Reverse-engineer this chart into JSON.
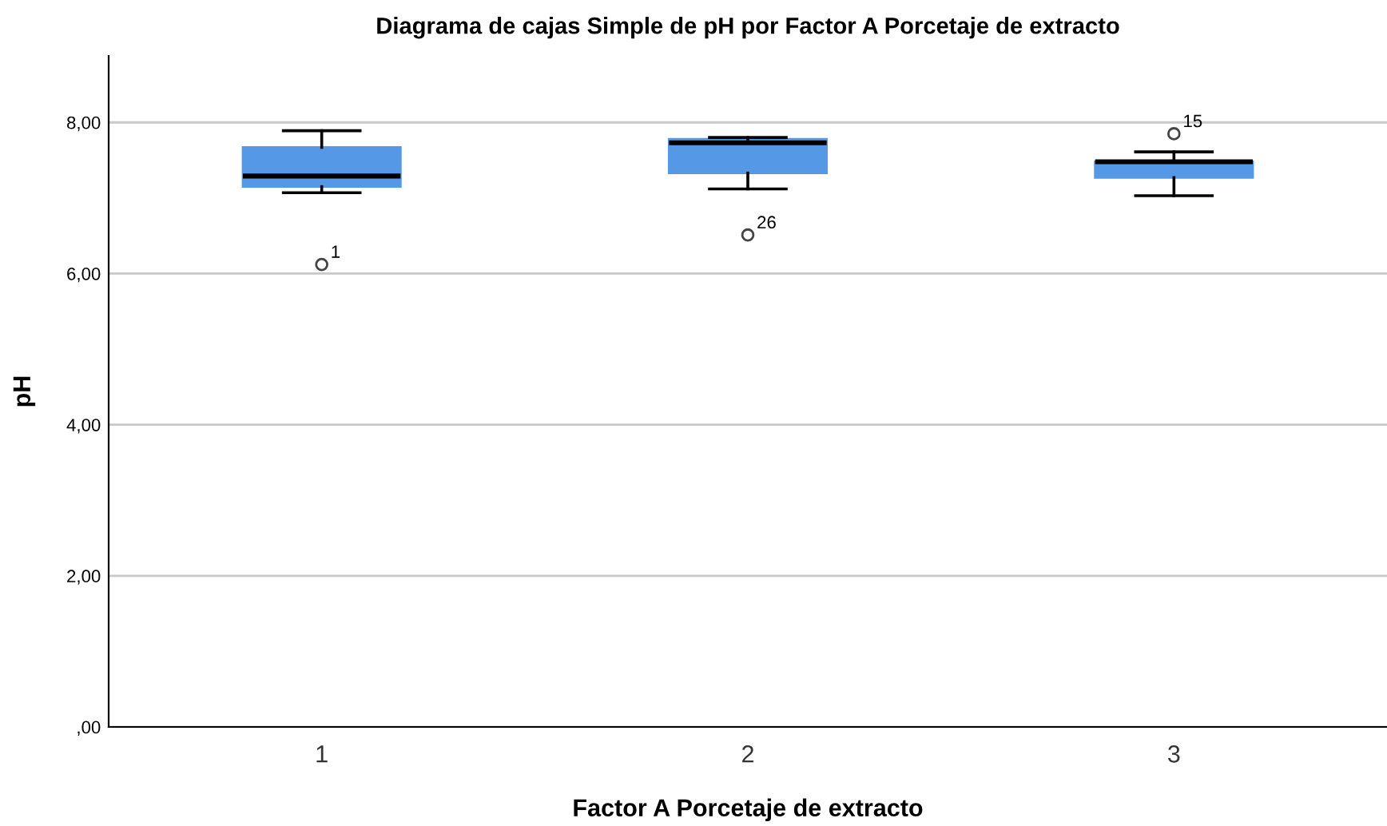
{
  "chart_data": {
    "type": "box",
    "title": "Diagrama de cajas Simple de pH por Factor A Porcetaje de extracto",
    "xlabel": "Factor A Porcetaje de extracto",
    "ylabel": "pH",
    "categories": [
      "1",
      "2",
      "3"
    ],
    "color": "#5599e6",
    "boxes": [
      {
        "low": 7.07,
        "q1": 7.15,
        "median": 7.29,
        "q3": 7.67,
        "high": 7.89,
        "outliers": [
          6.12
        ]
      },
      {
        "low": 7.12,
        "q1": 7.33,
        "median": 7.73,
        "q3": 7.78,
        "high": 7.8,
        "outliers": [
          6.51
        ]
      },
      {
        "low": 7.03,
        "q1": 7.27,
        "median": 7.48,
        "q3": 7.48,
        "high": 7.61,
        "outliers": [
          7.85
        ]
      }
    ],
    "annotations": [
      "1",
      "26",
      "15"
    ],
    "ylim": [
      0,
      8.88
    ],
    "yticks": [
      {
        "value": 0,
        "label": ",00"
      },
      {
        "value": 2,
        "label": "2,00"
      },
      {
        "value": 4,
        "label": "4,00"
      },
      {
        "value": 6,
        "label": "6,00"
      },
      {
        "value": 8,
        "label": "8,00"
      }
    ],
    "grid": "y"
  }
}
